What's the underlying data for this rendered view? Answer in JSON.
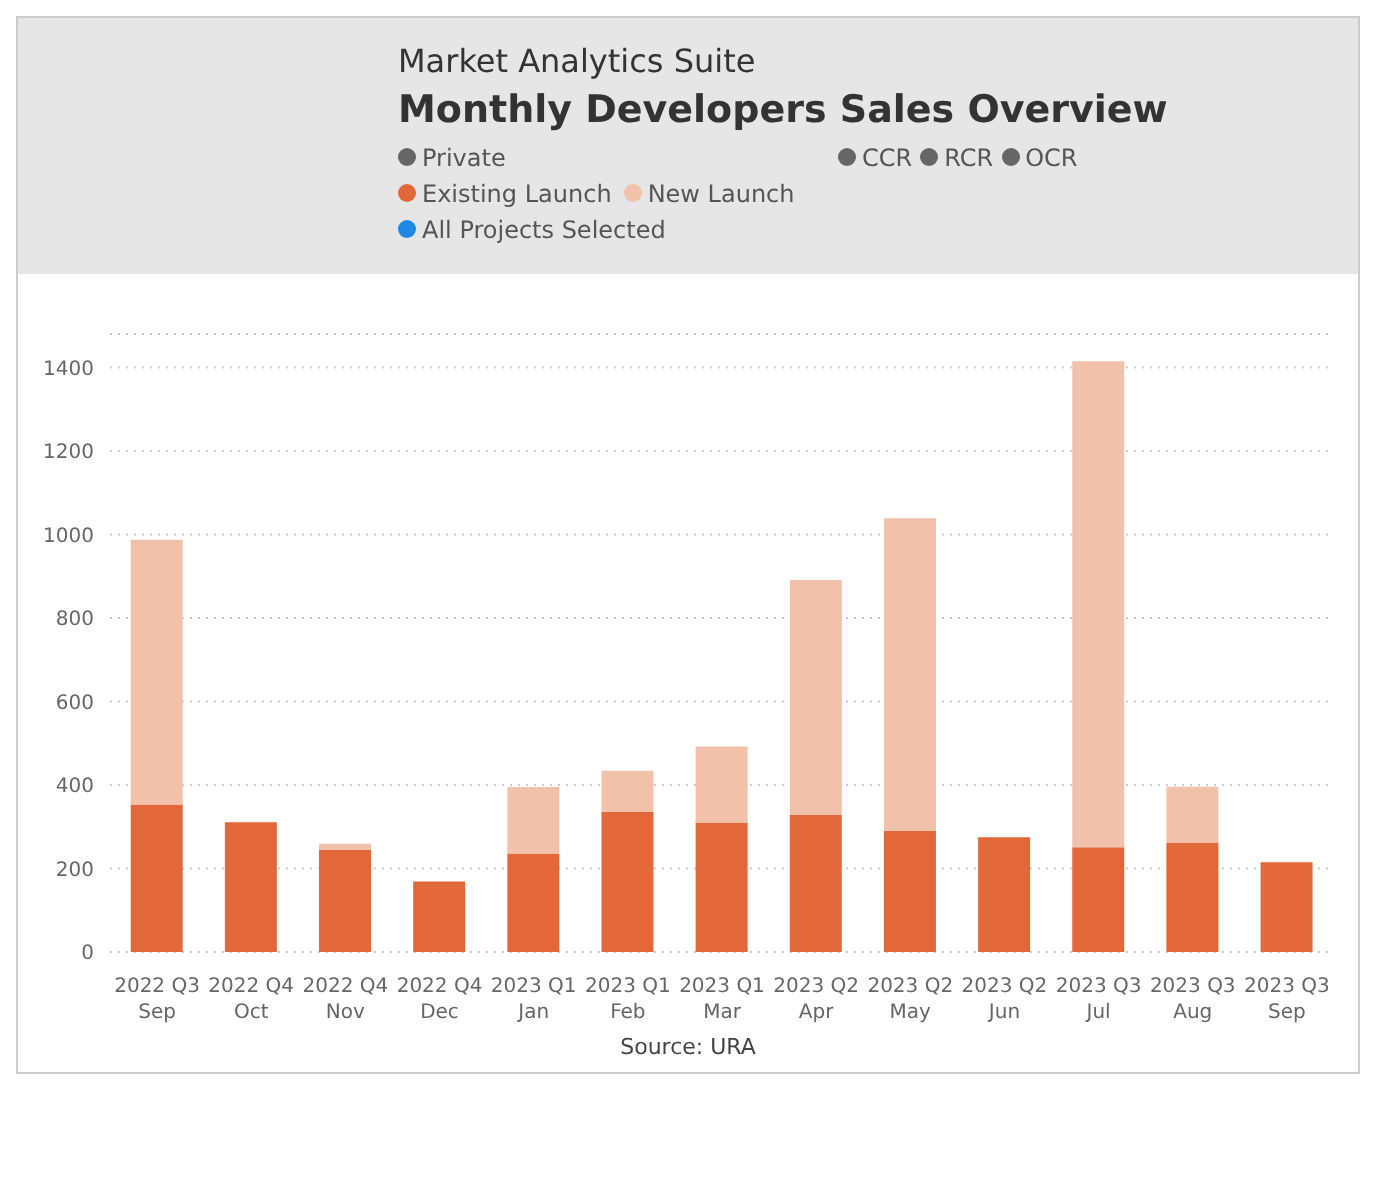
{
  "chart_data": {
    "type": "bar",
    "title": "Monthly Developers Sales Overview",
    "subtitle": "Market Analytics Suite",
    "categories": [
      "2022 Q3\nSep",
      "2022 Q4\nOct",
      "2022 Q4\nNov",
      "2022 Q4\nDec",
      "2023 Q1\nJan",
      "2023 Q1\nFeb",
      "2023 Q1\nMar",
      "2023 Q2\nApr",
      "2023 Q2\nMay",
      "2023 Q2\nJun",
      "2023 Q3\nJul",
      "2023 Q3\nAug",
      "2023 Q3\nSep"
    ],
    "series": [
      {
        "name": "Existing Launch",
        "color": "#e2683a",
        "values": [
          353,
          311,
          244,
          169,
          236,
          335,
          310,
          328,
          290,
          275,
          251,
          262,
          215
        ]
      },
      {
        "name": "New Launch",
        "color": "#f2c1aa",
        "values": [
          634,
          0,
          15,
          0,
          159,
          99,
          182,
          563,
          749,
          0,
          1164,
          134,
          0
        ]
      }
    ],
    "stacked": true,
    "ylim": [
      0,
      1480
    ],
    "yticks": [
      0,
      200,
      400,
      600,
      800,
      1000,
      1200,
      1400
    ],
    "grid": "y",
    "legend": "top left",
    "annotations": [
      "Private",
      "CCR",
      "RCR",
      "OCR",
      "All Projects Selected",
      "Source: URA"
    ]
  }
}
